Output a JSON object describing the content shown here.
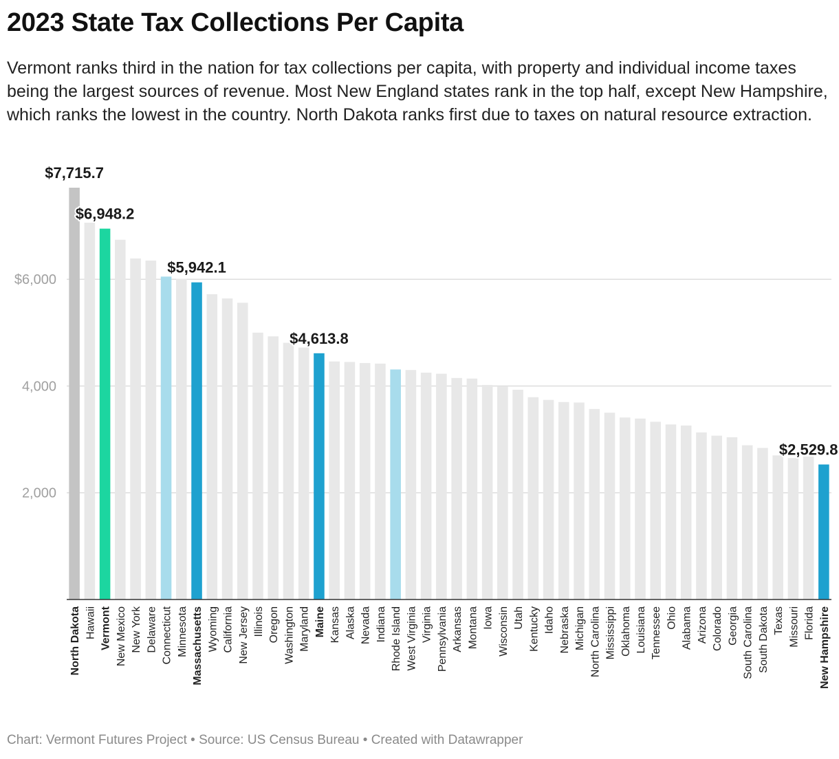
{
  "title": "2023 State Tax Collections Per Capita",
  "subtitle": "Vermont ranks third in the nation for tax collections per capita, with property and individual income taxes being the largest sources of revenue. Most New England states rank in the top half, except New Hampshire, which ranks the lowest in the country. North Dakota ranks first due to taxes on natural resource extraction.",
  "footer": "Chart: Vermont Futures Project • Source: US Census Bureau • Created with Datawrapper",
  "colors": {
    "default": "#e8e8e8",
    "north_dakota": "#c4c4c4",
    "vermont": "#1cd6a0",
    "light_blue": "#a8dcec",
    "dark_blue": "#1ea1cf",
    "grid": "#dddddd",
    "tick_text": "#a0a0a0"
  },
  "chart_data": {
    "type": "bar",
    "title": "2023 State Tax Collections Per Capita",
    "xlabel": "",
    "ylabel": "",
    "ylim": [
      0,
      7715.7
    ],
    "yticks": [
      {
        "value": 2000,
        "label": "2,000"
      },
      {
        "value": 4000,
        "label": "4,000"
      },
      {
        "value": 6000,
        "label": "$6,000"
      }
    ],
    "categories": [
      "North Dakota",
      "Hawaii",
      "Vermont",
      "New Mexico",
      "New York",
      "Delaware",
      "Connecticut",
      "Minnesota",
      "Massachusetts",
      "Wyoming",
      "California",
      "New Jersey",
      "Illinois",
      "Oregon",
      "Washington",
      "Maryland",
      "Maine",
      "Kansas",
      "Alaska",
      "Nevada",
      "Indiana",
      "Rhode Island",
      "West Virginia",
      "Virginia",
      "Pennsylvania",
      "Arkansas",
      "Montana",
      "Iowa",
      "Wisconsin",
      "Utah",
      "Kentucky",
      "Idaho",
      "Nebraska",
      "Michigan",
      "North Carolina",
      "Mississippi",
      "Oklahoma",
      "Louisiana",
      "Tennessee",
      "Ohio",
      "Alabama",
      "Arizona",
      "Colorado",
      "Georgia",
      "South Carolina",
      "South Dakota",
      "Texas",
      "Missouri",
      "Florida",
      "New Hampshire"
    ],
    "values": [
      7715.7,
      7060,
      6948.2,
      6740,
      6390,
      6350,
      6050,
      6010,
      5942.1,
      5720,
      5640,
      5560,
      5000,
      4930,
      4810,
      4720,
      4613.8,
      4460,
      4450,
      4430,
      4420,
      4310,
      4300,
      4250,
      4230,
      4150,
      4140,
      4020,
      3990,
      3930,
      3790,
      3740,
      3700,
      3690,
      3570,
      3500,
      3410,
      3390,
      3330,
      3280,
      3260,
      3130,
      3070,
      3040,
      2890,
      2840,
      2700,
      2650,
      2680,
      2529.8
    ],
    "highlight": {
      "North Dakota": "north_dakota",
      "Vermont": "vermont",
      "Connecticut": "light_blue",
      "Rhode Island": "light_blue",
      "Massachusetts": "dark_blue",
      "Maine": "dark_blue",
      "New Hampshire": "dark_blue"
    },
    "bold_labels": [
      "North Dakota",
      "Vermont",
      "Massachusetts",
      "Maine",
      "New Hampshire"
    ],
    "annotations": [
      {
        "category": "North Dakota",
        "text": "$7,715.7"
      },
      {
        "category": "Vermont",
        "text": "$6,948.2"
      },
      {
        "category": "Massachusetts",
        "text": "$5,942.1"
      },
      {
        "category": "Maine",
        "text": "$4,613.8"
      },
      {
        "category": "New Hampshire",
        "text": "$2,529.8"
      }
    ]
  }
}
